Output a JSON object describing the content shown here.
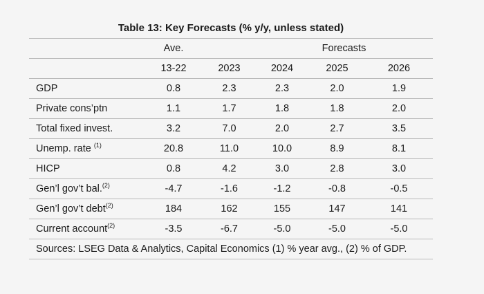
{
  "title": "Table 13: Key Forecasts (% y/y, unless stated)",
  "header": {
    "group_ave": "Ave.",
    "group_forecasts": "Forecasts",
    "columns": [
      "13-22",
      "2023",
      "2024",
      "2025",
      "2026"
    ]
  },
  "rows": [
    {
      "label": "GDP",
      "note": "",
      "values": [
        "0.8",
        "2.3",
        "2.3",
        "2.0",
        "1.9"
      ]
    },
    {
      "label": "Private cons’ptn",
      "note": "",
      "values": [
        "1.1",
        "1.7",
        "1.8",
        "1.8",
        "2.0"
      ]
    },
    {
      "label": "Total fixed invest.",
      "note": "",
      "values": [
        "3.2",
        "7.0",
        "2.0",
        "2.7",
        "3.5"
      ]
    },
    {
      "label": "Unemp. rate ",
      "note": "(1)",
      "values": [
        "20.8",
        "11.0",
        "10.0",
        "8.9",
        "8.1"
      ]
    },
    {
      "label": "HICP",
      "note": "",
      "values": [
        "0.8",
        "4.2",
        "3.0",
        "2.8",
        "3.0"
      ]
    },
    {
      "label": "Gen’l gov’t bal.",
      "note": "(2)",
      "values": [
        "-4.7",
        "-1.6",
        "-1.2",
        "-0.8",
        "-0.5"
      ]
    },
    {
      "label": "Gen’l gov’t debt",
      "note": "(2)",
      "values": [
        "184",
        "162",
        "155",
        "147",
        "141"
      ]
    },
    {
      "label": "Current account",
      "note": "(2)",
      "values": [
        "-3.5",
        "-6.7",
        "-5.0",
        "-5.0",
        "-5.0"
      ]
    }
  ],
  "source": "Sources: LSEG Data & Analytics, Capital Economics (1) % year avg., (2) % of GDP."
}
